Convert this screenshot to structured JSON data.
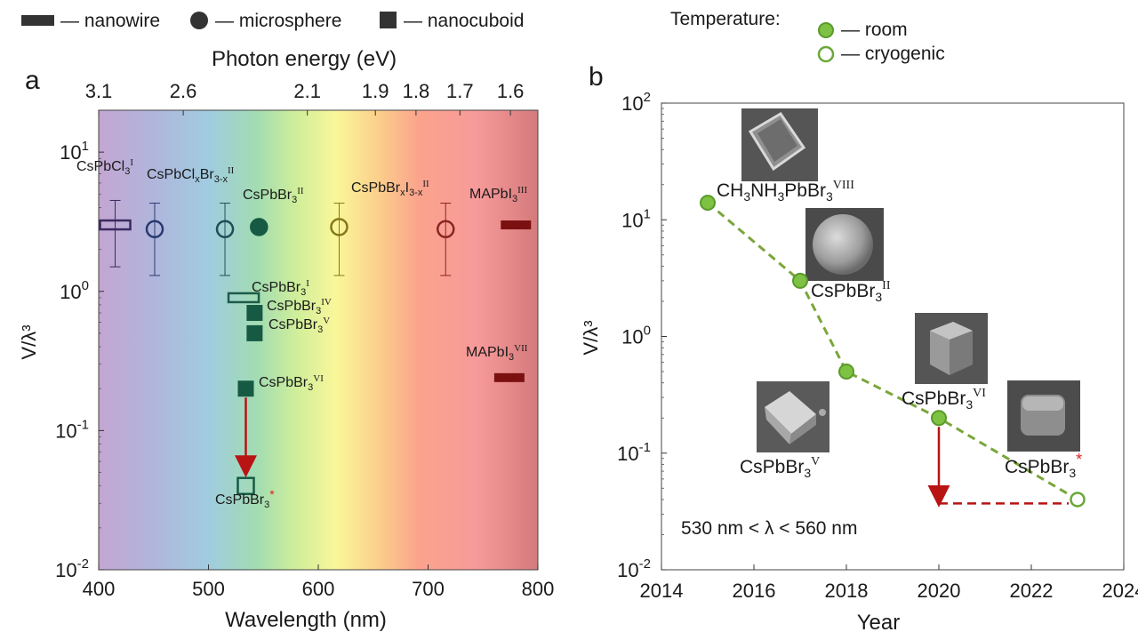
{
  "legend": {
    "nanowire": "— nanowire",
    "microsphere": "— microsphere",
    "nanocuboid": "— nanocuboid",
    "temperature_title": "Temperature:",
    "room": "— room",
    "cryogenic": "— cryogenic"
  },
  "colors": {
    "room_fill": "#7dc242",
    "room_edge": "#5a9a2a",
    "dashed_line": "#7aa63a",
    "arrow": "#b81414",
    "star": "#e02020"
  },
  "chart_data": [
    {
      "panel": "a",
      "type": "scatter",
      "xlabel": "Wavelength (nm)",
      "ylabel": "V/λ³",
      "top_xlabel": "Photon energy (eV)",
      "xlim": [
        400,
        800
      ],
      "ylim": [
        0.01,
        20
      ],
      "yscale": "log",
      "xticks": [
        "400",
        "500",
        "600",
        "700",
        "800"
      ],
      "yticks": [
        {
          "base": "10",
          "exp": "1",
          "value": 10
        },
        {
          "base": "10",
          "exp": "0",
          "value": 1
        },
        {
          "base": "10",
          "exp": "-1",
          "value": 0.1
        },
        {
          "base": "10",
          "exp": "-2",
          "value": 0.01
        }
      ],
      "top_ticks": [
        {
          "label": "3.1",
          "wavelength": 400
        },
        {
          "label": "2.6",
          "wavelength": 477
        },
        {
          "label": "2.1",
          "wavelength": 590
        },
        {
          "label": "1.9",
          "wavelength": 652
        },
        {
          "label": "1.8",
          "wavelength": 689
        },
        {
          "label": "1.7",
          "wavelength": 729
        },
        {
          "label": "1.6",
          "wavelength": 775
        }
      ],
      "points": [
        {
          "name": "CsPbCl3",
          "sup": "I",
          "x": 415,
          "y": 3.0,
          "err": [
            1.5,
            4.5
          ],
          "shape": "nanowire",
          "filled": false,
          "color": "#3b2a60",
          "label": "CsPbCl",
          "sub": "3",
          "label_pos": [
            86,
            192
          ]
        },
        {
          "name": "CsPbClxBr3-x",
          "sup": "II",
          "x": 451,
          "y": 2.8,
          "err": [
            1.3,
            4.3
          ],
          "shape": "microsphere",
          "filled": false,
          "color": "#2a3a70",
          "label": "CsPbCl",
          "sub": "x",
          "label2": "Br",
          "sub2": "3-x",
          "label_pos": [
            165,
            201
          ]
        },
        {
          "name": "CsPbBr3",
          "sup": "II",
          "x": 515,
          "y": 2.8,
          "err": [
            1.3,
            4.3
          ],
          "shape": "microsphere",
          "filled": false,
          "color": "#1e4f58",
          "label": "",
          "label_pos": [
            0,
            0
          ]
        },
        {
          "name": "CsPbBr3",
          "sup": "II",
          "x": 546,
          "y": 2.9,
          "err": null,
          "shape": "microsphere",
          "filled": true,
          "color": "#165a44",
          "label": "CsPbBr",
          "sub": "3",
          "label_pos": [
            273,
            224
          ]
        },
        {
          "name": "CsPbBrxI3-x",
          "sup": "II",
          "x": 619,
          "y": 2.9,
          "err": [
            1.3,
            4.3
          ],
          "shape": "microsphere",
          "filled": false,
          "color": "#857818",
          "label": "CsPbBr",
          "sub": "x",
          "label2": "I",
          "sub2": "3-x",
          "label_pos": [
            395,
            216
          ]
        },
        {
          "name": "CsPbBr3",
          "sup": "II",
          "x": 716,
          "y": 2.8,
          "err": [
            1.3,
            4.3
          ],
          "shape": "microsphere",
          "filled": false,
          "color": "#8a2424",
          "label": "",
          "label_pos": [
            0,
            0
          ]
        },
        {
          "name": "MAPbI3",
          "sup": "III",
          "x": 780,
          "y": 3.0,
          "err": null,
          "shape": "nanowire",
          "filled": true,
          "color": "#7a1010",
          "label": "MAPbI",
          "sub": "3",
          "label_pos": [
            528,
            223
          ]
        },
        {
          "name": "CsPbBr3",
          "sup": "I",
          "x": 532,
          "y": 0.9,
          "err": null,
          "shape": "nanowire",
          "filled": false,
          "color": "#1d5a48",
          "label": "CsPbBr",
          "sub": "3",
          "label_pos": [
            283,
            328
          ]
        },
        {
          "name": "CsPbBr3",
          "sup": "IV",
          "x": 542,
          "y": 0.7,
          "err": null,
          "shape": "nanocuboid",
          "filled": true,
          "color": "#165a44",
          "label": "CsPbBr",
          "sub": "3",
          "label_pos": [
            300,
            349
          ]
        },
        {
          "name": "CsPbBr3",
          "sup": "V",
          "x": 542,
          "y": 0.5,
          "err": null,
          "shape": "nanocuboid",
          "filled": true,
          "color": "#165a44",
          "label": "CsPbBr",
          "sub": "3",
          "label_pos": [
            302,
            370
          ]
        },
        {
          "name": "MAPbI3",
          "sup": "VII",
          "x": 774,
          "y": 0.24,
          "err": null,
          "shape": "nanowire",
          "filled": true,
          "color": "#7a1010",
          "label": "MAPbI",
          "sub": "3",
          "label_pos": [
            524,
            401
          ]
        },
        {
          "name": "CsPbBr3",
          "sup": "VI",
          "x": 534,
          "y": 0.2,
          "err": null,
          "shape": "nanocuboid",
          "filled": true,
          "color": "#165a44",
          "label": "CsPbBr",
          "sub": "3",
          "label_pos": [
            291,
            435
          ]
        },
        {
          "name": "CsPbBr3",
          "sup": "*",
          "x": 534,
          "y": 0.04,
          "err": null,
          "shape": "nanocuboid",
          "filled": false,
          "color": "#165a44",
          "label": "CsPbBr",
          "sub": "3",
          "label_pos": [
            242,
            567
          ]
        }
      ],
      "arrow": {
        "x": 534,
        "from": 0.2,
        "to": 0.045
      }
    },
    {
      "panel": "b",
      "type": "line",
      "xlabel": "Year",
      "ylabel": "V/λ³",
      "xlim": [
        2014,
        2024
      ],
      "ylim": [
        0.01,
        100
      ],
      "yscale": "log",
      "xticks": [
        "2014",
        "2016",
        "2018",
        "2020",
        "2022",
        "2024"
      ],
      "yticks": [
        {
          "base": "10",
          "exp": "2",
          "value": 100
        },
        {
          "base": "10",
          "exp": "1",
          "value": 10
        },
        {
          "base": "10",
          "exp": "0",
          "value": 1
        },
        {
          "base": "10",
          "exp": "-1",
          "value": 0.1
        },
        {
          "base": "10",
          "exp": "-2",
          "value": 0.01
        }
      ],
      "annotation": "530 nm < λ < 560 nm",
      "series": [
        {
          "name": "CH3NH3PbBr3",
          "sup": "VIII",
          "x": 2015,
          "y": 14,
          "temperature": "room",
          "label": "CH",
          "sub": "3",
          "label2": "NH",
          "sub2": "3",
          "label3": "PbBr",
          "sub3": "3"
        },
        {
          "name": "CsPbBr3",
          "sup": "II",
          "x": 2017,
          "y": 3.0,
          "temperature": "room",
          "label": "CsPbBr",
          "sub": "3"
        },
        {
          "name": "CsPbBr3",
          "sup": "V",
          "x": 2018,
          "y": 0.5,
          "temperature": "room",
          "label": "CsPbBr",
          "sub": "3"
        },
        {
          "name": "CsPbBr3",
          "sup": "VI",
          "x": 2020,
          "y": 0.2,
          "temperature": "room",
          "label": "CsPbBr",
          "sub": "3"
        },
        {
          "name": "CsPbBr3",
          "sup": "*",
          "x": 2023,
          "y": 0.04,
          "temperature": "cryogenic",
          "label": "CsPbBr",
          "sub": "3"
        }
      ],
      "red_drop": {
        "x": 2020,
        "from": 0.2,
        "to": 0.037,
        "to_x": 2023
      }
    }
  ]
}
